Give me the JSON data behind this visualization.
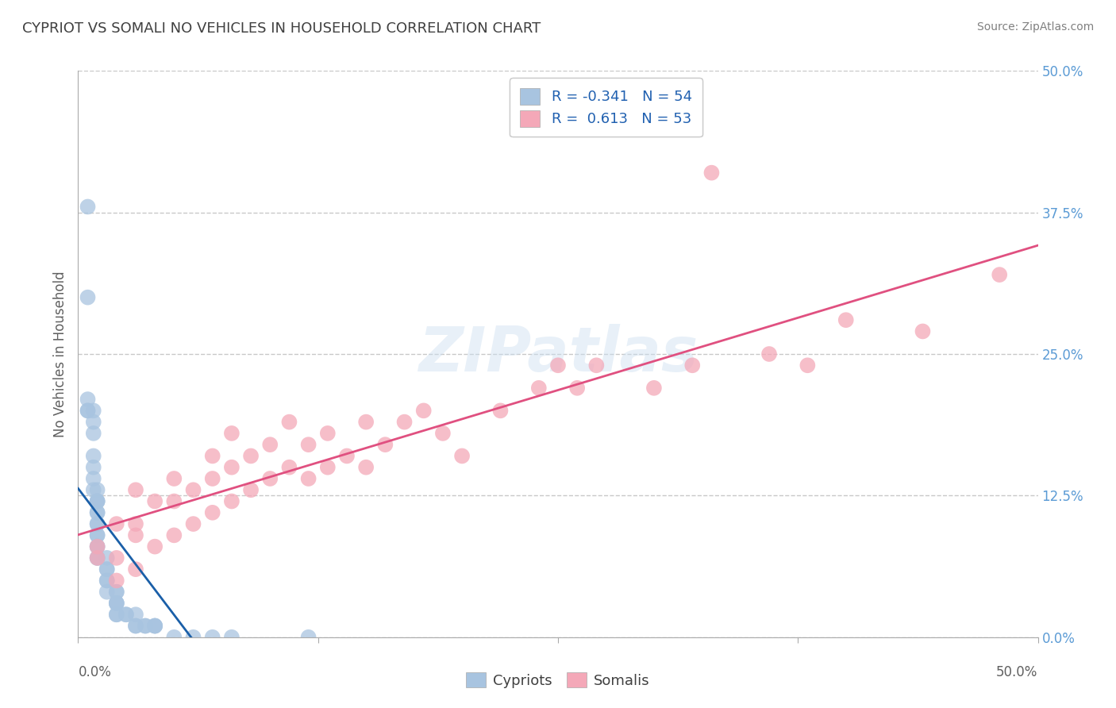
{
  "title": "CYPRIOT VS SOMALI NO VEHICLES IN HOUSEHOLD CORRELATION CHART",
  "source_text": "Source: ZipAtlas.com",
  "ylabel": "No Vehicles in Household",
  "xlim": [
    0.0,
    0.5
  ],
  "ylim": [
    0.0,
    0.5
  ],
  "xtick_vals": [
    0.0,
    0.125,
    0.25,
    0.375,
    0.5
  ],
  "ytick_vals": [
    0.0,
    0.125,
    0.25,
    0.375,
    0.5
  ],
  "xtick_labels_outer": [
    "0.0%",
    "50.0%"
  ],
  "xtick_outer_vals": [
    0.0,
    0.5
  ],
  "right_ytick_labels": [
    "50.0%",
    "37.5%",
    "25.0%",
    "12.5%",
    "0.0%"
  ],
  "right_ytick_vals": [
    0.5,
    0.375,
    0.25,
    0.125,
    0.0
  ],
  "cypriot_color": "#a8c4e0",
  "somali_color": "#f4a8b8",
  "cypriot_R": -0.341,
  "cypriot_N": 54,
  "somali_R": 0.613,
  "somali_N": 53,
  "legend_label_cypriot": "Cypriots",
  "legend_label_somali": "Somalis",
  "cypriot_line_color": "#1a5fa8",
  "somali_line_color": "#e05080",
  "watermark": "ZIPatlas",
  "title_color": "#404040",
  "source_color": "#808080",
  "axis_label_color": "#606060",
  "tick_color": "#606060",
  "right_tick_color": "#5b9bd5",
  "grid_color": "#c8c8c8",
  "cypriot_x": [
    0.005,
    0.005,
    0.005,
    0.005,
    0.005,
    0.008,
    0.008,
    0.008,
    0.008,
    0.008,
    0.008,
    0.008,
    0.01,
    0.01,
    0.01,
    0.01,
    0.01,
    0.01,
    0.01,
    0.01,
    0.01,
    0.01,
    0.01,
    0.01,
    0.01,
    0.01,
    0.015,
    0.015,
    0.015,
    0.015,
    0.015,
    0.015,
    0.02,
    0.02,
    0.02,
    0.02,
    0.02,
    0.02,
    0.02,
    0.025,
    0.025,
    0.03,
    0.03,
    0.03,
    0.035,
    0.035,
    0.04,
    0.04,
    0.04,
    0.05,
    0.06,
    0.07,
    0.08,
    0.12
  ],
  "cypriot_y": [
    0.38,
    0.3,
    0.21,
    0.2,
    0.2,
    0.2,
    0.19,
    0.18,
    0.16,
    0.15,
    0.14,
    0.13,
    0.13,
    0.12,
    0.12,
    0.12,
    0.11,
    0.11,
    0.1,
    0.1,
    0.09,
    0.09,
    0.08,
    0.08,
    0.07,
    0.07,
    0.07,
    0.06,
    0.06,
    0.05,
    0.05,
    0.04,
    0.04,
    0.04,
    0.03,
    0.03,
    0.03,
    0.02,
    0.02,
    0.02,
    0.02,
    0.02,
    0.01,
    0.01,
    0.01,
    0.01,
    0.01,
    0.01,
    0.01,
    0.0,
    0.0,
    0.0,
    0.0,
    0.0
  ],
  "somali_x": [
    0.01,
    0.01,
    0.02,
    0.02,
    0.02,
    0.03,
    0.03,
    0.03,
    0.03,
    0.04,
    0.04,
    0.05,
    0.05,
    0.05,
    0.06,
    0.06,
    0.07,
    0.07,
    0.07,
    0.08,
    0.08,
    0.08,
    0.09,
    0.09,
    0.1,
    0.1,
    0.11,
    0.11,
    0.12,
    0.12,
    0.13,
    0.13,
    0.14,
    0.15,
    0.15,
    0.16,
    0.17,
    0.18,
    0.19,
    0.2,
    0.22,
    0.24,
    0.25,
    0.26,
    0.27,
    0.3,
    0.32,
    0.33,
    0.36,
    0.38,
    0.4,
    0.44,
    0.48
  ],
  "somali_y": [
    0.07,
    0.08,
    0.05,
    0.07,
    0.1,
    0.06,
    0.09,
    0.1,
    0.13,
    0.08,
    0.12,
    0.09,
    0.12,
    0.14,
    0.1,
    0.13,
    0.11,
    0.14,
    0.16,
    0.12,
    0.15,
    0.18,
    0.13,
    0.16,
    0.14,
    0.17,
    0.15,
    0.19,
    0.14,
    0.17,
    0.15,
    0.18,
    0.16,
    0.15,
    0.19,
    0.17,
    0.19,
    0.2,
    0.18,
    0.16,
    0.2,
    0.22,
    0.24,
    0.22,
    0.24,
    0.22,
    0.24,
    0.41,
    0.25,
    0.24,
    0.28,
    0.27,
    0.32
  ]
}
